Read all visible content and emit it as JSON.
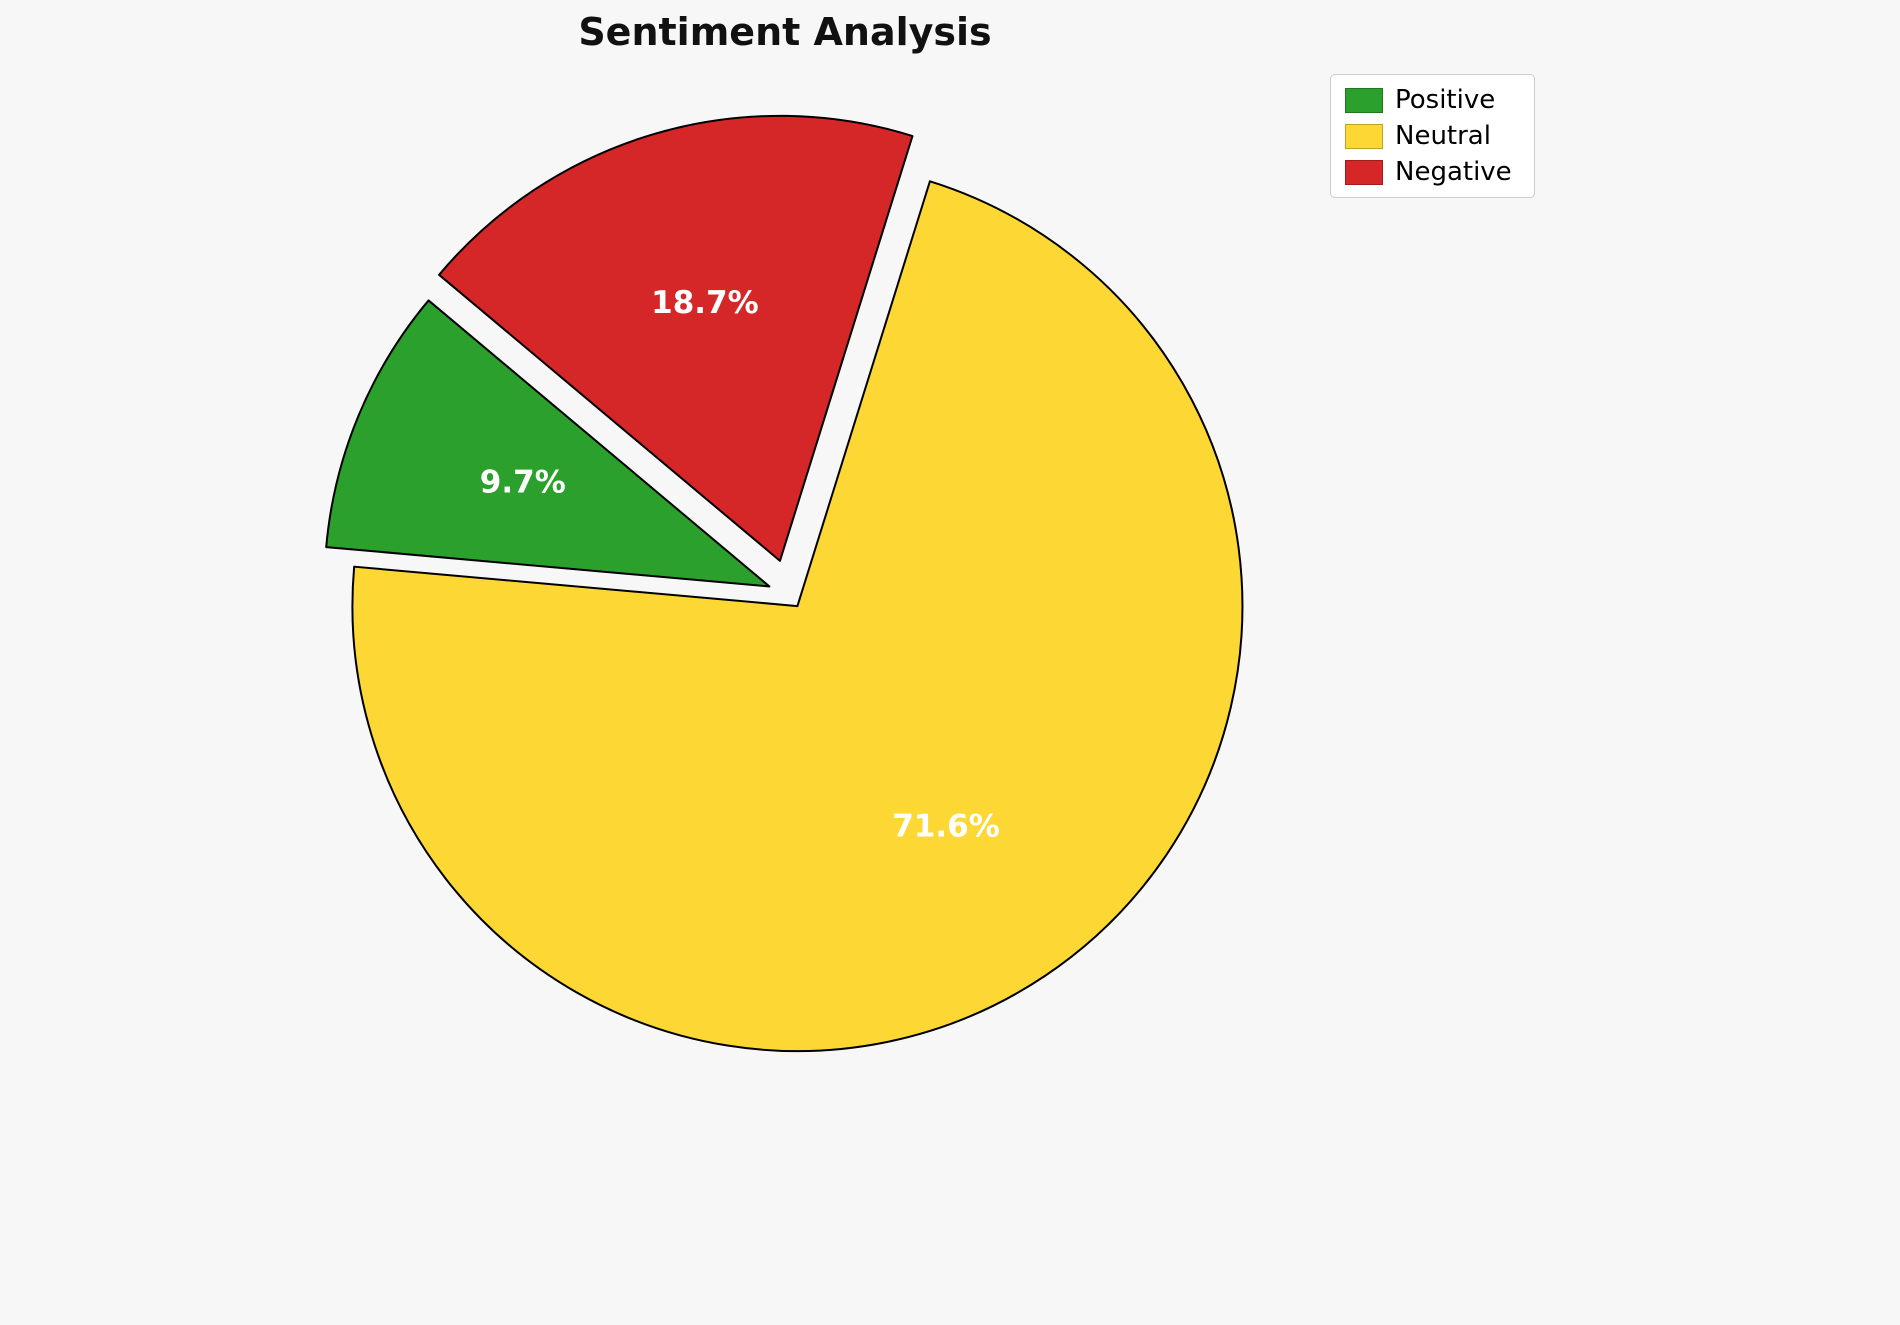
{
  "title": "Sentiment Analysis",
  "background_color": "#f7f7f7",
  "chart_data": {
    "type": "pie",
    "title": "Sentiment Analysis",
    "labels": [
      "Positive",
      "Neutral",
      "Negative"
    ],
    "values": [
      9.7,
      71.6,
      18.7
    ],
    "pct_labels": [
      "9.7%",
      "71.6%",
      "18.7%"
    ],
    "colors": [
      "#2ca02c",
      "#fdd835",
      "#d62728"
    ],
    "slice_edge_color": "#000000",
    "pct_label_color": "#ffffff",
    "start_angle": 140,
    "counterclockwise": true,
    "explode": [
      0.05,
      0.03,
      0.08
    ],
    "pct_distance": 0.6,
    "legend": {
      "position": "upper right",
      "labels": [
        "Positive",
        "Neutral",
        "Negative"
      ]
    }
  }
}
